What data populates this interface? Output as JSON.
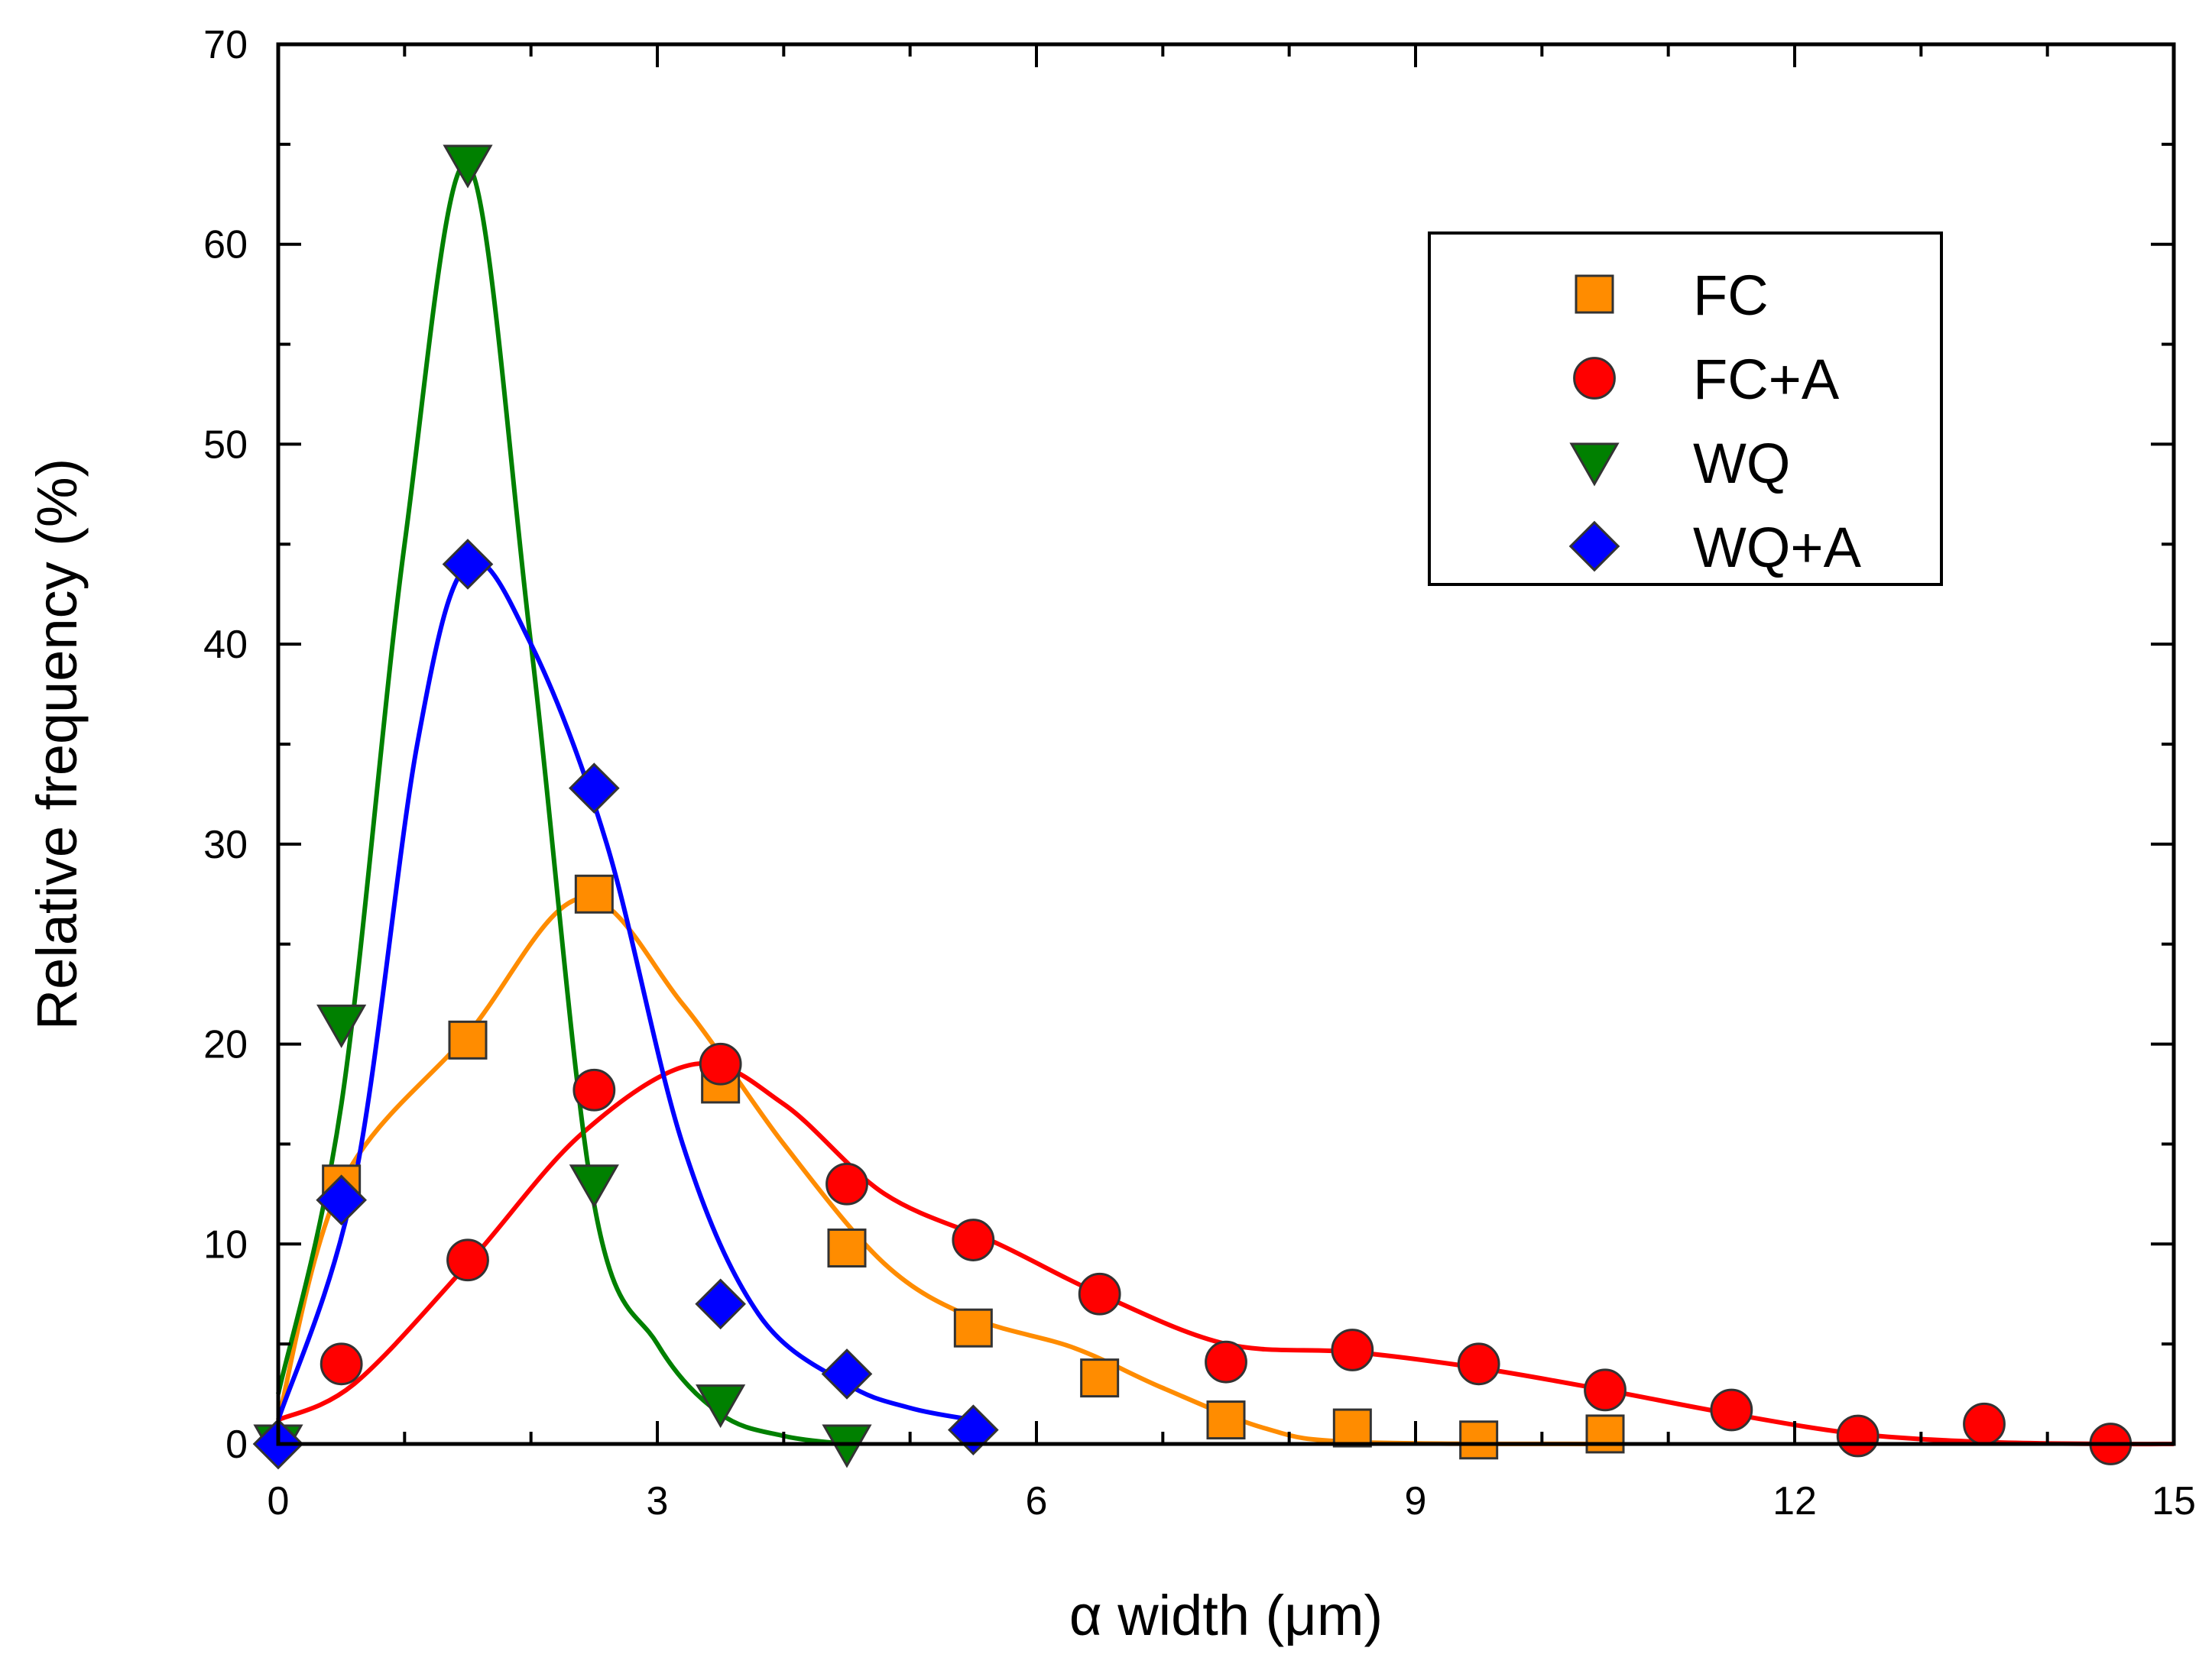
{
  "chart_data": {
    "type": "scatter",
    "title": "",
    "xlabel": "α width (μm)",
    "ylabel": "Relative frequency (%)",
    "xlim": [
      0,
      15
    ],
    "ylim": [
      0,
      70
    ],
    "xticks": [
      0,
      3,
      6,
      9,
      12,
      15
    ],
    "yticks": [
      0,
      10,
      20,
      30,
      40,
      50,
      60,
      70
    ],
    "grid": false,
    "legend_position": "top-right",
    "series": [
      {
        "name": "FC",
        "marker": "square",
        "color": "#ff8c00",
        "x": [
          0.5,
          1.5,
          2.5,
          3.5,
          4.5,
          5.5,
          6.5,
          7.5,
          8.5,
          9.5,
          10.5
        ],
        "y": [
          13,
          20.2,
          27.5,
          18,
          9.8,
          5.8,
          3.3,
          1.2,
          0.8,
          0.2,
          0.5
        ],
        "fit": [
          [
            0,
            1.2
          ],
          [
            0.5,
            13
          ],
          [
            1.5,
            20.5
          ],
          [
            2.4,
            27.3
          ],
          [
            3.2,
            22
          ],
          [
            4,
            15
          ],
          [
            4.8,
            9
          ],
          [
            5.5,
            6.3
          ],
          [
            6.3,
            4.8
          ],
          [
            7,
            2.8
          ],
          [
            7.8,
            0.8
          ],
          [
            8.5,
            0.1
          ],
          [
            10.5,
            0
          ]
        ]
      },
      {
        "name": "FC+A",
        "marker": "circle",
        "color": "#ff0000",
        "x": [
          0.5,
          1.5,
          2.5,
          3.5,
          4.5,
          5.5,
          6.5,
          7.5,
          8.5,
          9.5,
          10.5,
          11.5,
          12.5,
          13.5,
          14.5
        ],
        "y": [
          4,
          9.2,
          17.7,
          19,
          13,
          10.2,
          7.5,
          4.1,
          4.7,
          4,
          2.7,
          1.7,
          0.4,
          1,
          0
        ],
        "fit": [
          [
            0,
            1.2
          ],
          [
            0.6,
            3
          ],
          [
            1.5,
            9
          ],
          [
            2.4,
            15.5
          ],
          [
            3.3,
            19
          ],
          [
            4,
            17
          ],
          [
            4.8,
            12.5
          ],
          [
            5.7,
            10
          ],
          [
            6.5,
            7.5
          ],
          [
            7.5,
            5
          ],
          [
            8.5,
            4.6
          ],
          [
            9.5,
            3.8
          ],
          [
            10.5,
            2.7
          ],
          [
            11.5,
            1.5
          ],
          [
            12.5,
            0.5
          ],
          [
            13.5,
            0.1
          ],
          [
            14.5,
            0
          ],
          [
            15,
            0
          ]
        ]
      },
      {
        "name": "WQ",
        "marker": "triangle-down",
        "color": "#008000",
        "x": [
          0,
          0.5,
          1.5,
          2.5,
          3.5,
          4.5
        ],
        "y": [
          0,
          21,
          64,
          13,
          2,
          0
        ],
        "fit": [
          [
            0,
            2.5
          ],
          [
            0.5,
            17
          ],
          [
            1,
            45
          ],
          [
            1.5,
            64
          ],
          [
            2,
            40
          ],
          [
            2.5,
            12
          ],
          [
            3,
            5
          ],
          [
            3.5,
            1.5
          ],
          [
            4,
            0.4
          ],
          [
            4.5,
            0
          ]
        ]
      },
      {
        "name": "WQ+A",
        "marker": "diamond",
        "color": "#0000ff",
        "x": [
          0,
          0.5,
          1.5,
          2.5,
          3.5,
          4.5,
          5.5
        ],
        "y": [
          0,
          12.2,
          44,
          32.8,
          7,
          3.5,
          0.7
        ],
        "fit": [
          [
            0,
            1.2
          ],
          [
            0.6,
            13
          ],
          [
            1.1,
            35
          ],
          [
            1.5,
            44
          ],
          [
            2,
            40
          ],
          [
            2.6,
            30
          ],
          [
            3.2,
            15
          ],
          [
            3.8,
            6.5
          ],
          [
            4.5,
            3
          ],
          [
            5,
            1.8
          ],
          [
            5.5,
            1.2
          ]
        ]
      }
    ]
  }
}
